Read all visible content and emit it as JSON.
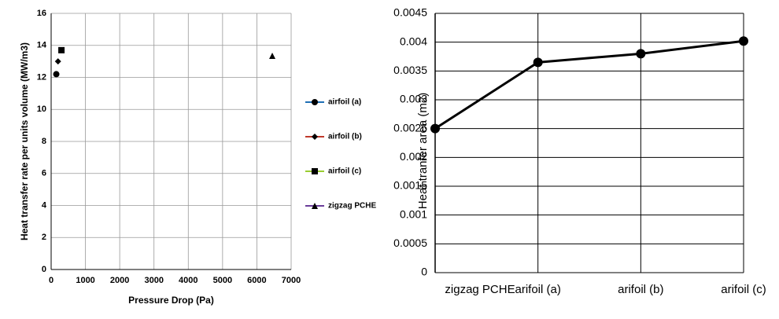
{
  "chart_data": [
    {
      "type": "scatter",
      "x_label": "Pressure Drop (Pa)",
      "y_label": "Heat transfer rate per units volume (MW/m3)",
      "xlim": [
        0,
        7000
      ],
      "xticks": [
        0,
        1000,
        2000,
        3000,
        4000,
        5000,
        6000,
        7000
      ],
      "ylim": [
        0,
        16
      ],
      "yticks": [
        0,
        2,
        4,
        6,
        8,
        10,
        12,
        14,
        16
      ],
      "grid": true,
      "legend": "right",
      "series": [
        {
          "name": "airfoil (a)",
          "color": "#1f6fb5",
          "marker": "circle",
          "x": [
            150
          ],
          "values": [
            12.2
          ]
        },
        {
          "name": "airfoil (b)",
          "color": "#c0392b",
          "marker": "diamond",
          "x": [
            200
          ],
          "values": [
            13.0
          ]
        },
        {
          "name": "airfoil (c)",
          "color": "#9acd32",
          "marker": "square",
          "x": [
            300
          ],
          "values": [
            13.7
          ]
        },
        {
          "name": "zigzag PCHE",
          "color": "#6a3d9a",
          "marker": "triangle",
          "x": [
            6450
          ],
          "values": [
            13.35
          ]
        }
      ]
    },
    {
      "type": "line",
      "y_label": "Heat tranfer area (m2)",
      "categories": [
        "zigzag PCHE",
        "arifoil (a)",
        "arifoil (b)",
        "arifoil (c)"
      ],
      "values": [
        0.0025,
        0.00365,
        0.0038,
        0.00402
      ],
      "color": "#000000",
      "ylim": [
        0,
        0.0045
      ],
      "yticks": [
        0,
        0.0005,
        0.001,
        0.0015,
        0.002,
        0.0025,
        0.003,
        0.0035,
        0.004,
        0.0045
      ],
      "grid": true
    }
  ]
}
